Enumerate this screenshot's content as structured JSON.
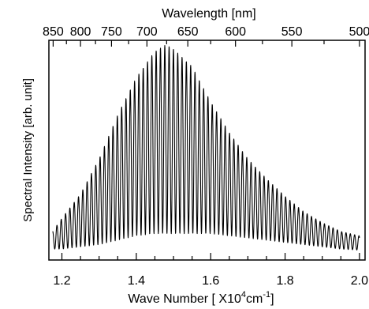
{
  "chart_data": {
    "type": "line",
    "title": "",
    "xlabel": "Wave Number [ X10",
    "xlabel_sup": "4",
    "xlabel_unit": "cm",
    "xlabel_unit_sup": "-1",
    "xlabel_close": "]",
    "ylabel": "Spectral Intensity [arb. unit]",
    "top_axis_label": "Wavelength [nm]",
    "xlim": [
      1.165,
      2.015
    ],
    "ylim": [
      0,
      1
    ],
    "x_ticks": [
      1.2,
      1.4,
      1.6,
      1.8,
      2.0
    ],
    "x_tick_labels": [
      "1.2",
      "1.4",
      "1.6",
      "1.8",
      "2.0"
    ],
    "x_minor_step": 0.05,
    "top_ticks_nm": [
      850,
      800,
      750,
      700,
      650,
      600,
      550,
      500
    ],
    "top_tick_labels": [
      "850",
      "800",
      "750",
      "700",
      "650",
      "600",
      "550",
      "500"
    ],
    "y_tick_labels": [],
    "grid": false,
    "legend": "none",
    "line_color": "#000000",
    "series": [
      {
        "fringe_period": 0.0116,
        "x_range": [
          1.175,
          2.0
        ],
        "envelope_max": [
          [
            1.175,
            0.13
          ],
          [
            1.2,
            0.19
          ],
          [
            1.25,
            0.3
          ],
          [
            1.3,
            0.46
          ],
          [
            1.35,
            0.66
          ],
          [
            1.4,
            0.83
          ],
          [
            1.45,
            0.95
          ],
          [
            1.48,
            0.98
          ],
          [
            1.5,
            0.96
          ],
          [
            1.55,
            0.88
          ],
          [
            1.6,
            0.72
          ],
          [
            1.65,
            0.58
          ],
          [
            1.7,
            0.46
          ],
          [
            1.75,
            0.37
          ],
          [
            1.8,
            0.29
          ],
          [
            1.85,
            0.22
          ],
          [
            1.9,
            0.17
          ],
          [
            1.95,
            0.13
          ],
          [
            2.0,
            0.11
          ]
        ],
        "envelope_min": [
          [
            1.175,
            0.05
          ],
          [
            1.2,
            0.05
          ],
          [
            1.25,
            0.06
          ],
          [
            1.3,
            0.07
          ],
          [
            1.35,
            0.09
          ],
          [
            1.4,
            0.11
          ],
          [
            1.45,
            0.12
          ],
          [
            1.5,
            0.12
          ],
          [
            1.55,
            0.12
          ],
          [
            1.6,
            0.12
          ],
          [
            1.65,
            0.11
          ],
          [
            1.7,
            0.1
          ],
          [
            1.75,
            0.09
          ],
          [
            1.8,
            0.08
          ],
          [
            1.85,
            0.07
          ],
          [
            1.9,
            0.06
          ],
          [
            1.95,
            0.05
          ],
          [
            2.0,
            0.045
          ]
        ]
      }
    ]
  }
}
